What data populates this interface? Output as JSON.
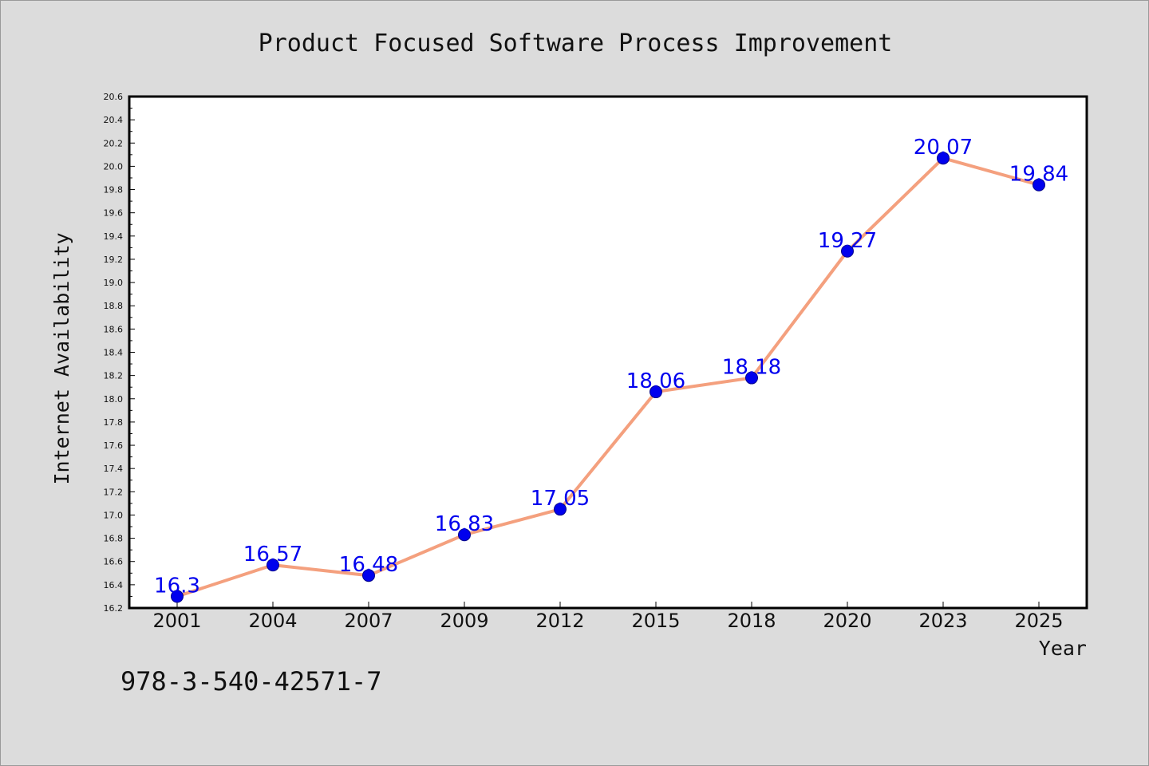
{
  "chart_data": {
    "type": "line",
    "title": "Product Focused Software Process Improvement",
    "xlabel": "Year",
    "ylabel": "Internet Availability",
    "categories": [
      "2001",
      "2004",
      "2007",
      "2009",
      "2012",
      "2015",
      "2018",
      "2020",
      "2023",
      "2025"
    ],
    "series": [
      {
        "values": [
          16.3,
          16.57,
          16.48,
          16.83,
          17.05,
          18.06,
          18.18,
          19.27,
          20.07,
          19.84
        ],
        "data_labels": [
          "16.3",
          "16.57",
          "16.48",
          "16.83",
          "17.05",
          "18.06",
          "18.18",
          "19.27",
          "20.07",
          "19.84"
        ]
      }
    ],
    "ylim": [
      16.2,
      20.6
    ],
    "yticks": [
      "16.2",
      "16.4",
      "16.6",
      "16.8",
      "17.0",
      "17.2",
      "17.4",
      "17.6",
      "17.8",
      "18.0",
      "18.2",
      "18.4",
      "18.6",
      "18.8",
      "19.0",
      "19.2",
      "19.4",
      "19.6",
      "19.8",
      "20.0",
      "20.2",
      "20.4",
      "20.6"
    ],
    "grid": false,
    "legend": "none",
    "colors": {
      "line": "#f4a07e",
      "marker": "#0000ee",
      "data_label": "#0000ee",
      "plot_background": "#ffffff",
      "figure_background": "#dcdcdc"
    }
  },
  "annotation": "978-3-540-42571-7"
}
